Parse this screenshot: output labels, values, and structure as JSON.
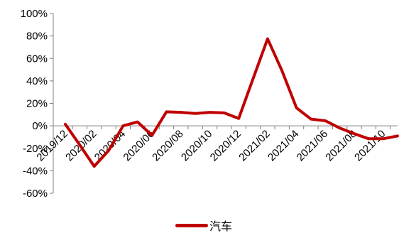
{
  "chart_data": {
    "type": "line",
    "title": "",
    "xlabel": "",
    "ylabel": "",
    "ylim": [
      -60,
      100
    ],
    "yticks": [
      -60,
      -40,
      -20,
      0,
      20,
      40,
      60,
      80,
      100
    ],
    "ytick_labels": [
      "-60%",
      "-40%",
      "-20%",
      "0%",
      "20%",
      "40%",
      "60%",
      "80%",
      "100%"
    ],
    "x": [
      "2019/12",
      "2020/01",
      "2020/02",
      "2020/03",
      "2020/04",
      "2020/05",
      "2020/06",
      "2020/07",
      "2020/08",
      "2020/09",
      "2020/10",
      "2020/11",
      "2020/12",
      "2021/01",
      "2021/02",
      "2021/03",
      "2021/04",
      "2021/05",
      "2021/06",
      "2021/07",
      "2021/08",
      "2021/09",
      "2021/10",
      "2021/11"
    ],
    "xtick_labels": [
      "2019/12",
      "2020/02",
      "2020/04",
      "2020/06",
      "2020/08",
      "2020/10",
      "2020/12",
      "2021/02",
      "2021/04",
      "2021/06",
      "2021/08",
      "2021/10"
    ],
    "series": [
      {
        "name": "汽车",
        "color": "#c00000",
        "values": [
          1.5,
          -17,
          -36,
          -22,
          0,
          3.5,
          -8.5,
          12.5,
          12,
          11,
          12,
          11.5,
          6.5,
          42,
          77.5,
          49,
          16,
          6,
          4.5,
          -2,
          -7,
          -11.5,
          -11.5,
          -9
        ]
      }
    ],
    "legend": {
      "position": "bottom"
    },
    "grid": false
  }
}
